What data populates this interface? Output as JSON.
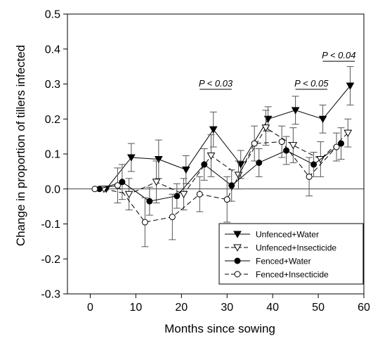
{
  "chart_data": {
    "type": "line",
    "title": "",
    "xlabel": "Months since sowing",
    "ylabel": "Change in proportion of tillers infected",
    "xlim": [
      -5,
      60
    ],
    "ylim": [
      -0.3,
      0.5
    ],
    "xticks": [
      0,
      10,
      20,
      30,
      40,
      50,
      60
    ],
    "yticks": [
      -0.3,
      -0.2,
      -0.1,
      0.0,
      0.1,
      0.2,
      0.3,
      0.4,
      0.5
    ],
    "xtick_labels": [
      "0",
      "10",
      "20",
      "30",
      "40",
      "50",
      "60"
    ],
    "ytick_labels": [
      "-0.3",
      "-0.2",
      "-0.1",
      "0.0",
      "0.1",
      "0.2",
      "0.3",
      "0.4",
      "0.5"
    ],
    "zero_line": true,
    "grid": false,
    "legend_position": "bottom-right",
    "series": [
      {
        "name": "Unfenced+Water",
        "marker": "triangle-down-filled",
        "dash": "solid",
        "color": "#000000",
        "points": [
          {
            "x": 3.5,
            "y": 0.0,
            "err": 0.0
          },
          {
            "x": 9,
            "y": 0.09,
            "err": 0.04
          },
          {
            "x": 15,
            "y": 0.085,
            "err": 0.055
          },
          {
            "x": 21,
            "y": 0.055,
            "err": 0.04
          },
          {
            "x": 27,
            "y": 0.17,
            "err": 0.05
          },
          {
            "x": 33,
            "y": 0.07,
            "err": 0.04
          },
          {
            "x": 39,
            "y": 0.2,
            "err": 0.035
          },
          {
            "x": 45,
            "y": 0.225,
            "err": 0.04
          },
          {
            "x": 51,
            "y": 0.2,
            "err": 0.04
          },
          {
            "x": 57,
            "y": 0.295,
            "err": 0.055
          }
        ]
      },
      {
        "name": "Unfenced+Insecticide",
        "marker": "triangle-down-open",
        "dash": "dashed",
        "color": "#000000",
        "points": [
          {
            "x": 3,
            "y": 0.0,
            "err": 0.0
          },
          {
            "x": 8.5,
            "y": -0.015,
            "err": 0.045
          },
          {
            "x": 14.5,
            "y": 0.02,
            "err": 0.06
          },
          {
            "x": 20.5,
            "y": -0.015,
            "err": 0.045
          },
          {
            "x": 26.5,
            "y": 0.095,
            "err": 0.06
          },
          {
            "x": 32.5,
            "y": 0.04,
            "err": 0.04
          },
          {
            "x": 38.5,
            "y": 0.175,
            "err": 0.05
          },
          {
            "x": 44.5,
            "y": 0.125,
            "err": 0.05
          },
          {
            "x": 50.5,
            "y": 0.085,
            "err": 0.05
          },
          {
            "x": 56.5,
            "y": 0.16,
            "err": 0.04
          }
        ]
      },
      {
        "name": "Fenced+Water",
        "marker": "circle-filled",
        "dash": "solid",
        "color": "#000000",
        "points": [
          {
            "x": 2,
            "y": 0.0,
            "err": 0.0
          },
          {
            "x": 7,
            "y": 0.02,
            "err": 0.05
          },
          {
            "x": 13,
            "y": -0.035,
            "err": 0.04
          },
          {
            "x": 19,
            "y": -0.02,
            "err": 0.035
          },
          {
            "x": 25,
            "y": 0.07,
            "err": 0.045
          },
          {
            "x": 31,
            "y": 0.01,
            "err": 0.045
          },
          {
            "x": 37,
            "y": 0.075,
            "err": 0.04
          },
          {
            "x": 43,
            "y": 0.11,
            "err": 0.04
          },
          {
            "x": 49,
            "y": 0.07,
            "err": 0.035
          },
          {
            "x": 55,
            "y": 0.13,
            "err": 0.045
          }
        ]
      },
      {
        "name": "Fenced+Insecticide",
        "marker": "circle-open",
        "dash": "dashed",
        "color": "#000000",
        "points": [
          {
            "x": 1,
            "y": 0.0,
            "err": 0.0
          },
          {
            "x": 6,
            "y": 0.01,
            "err": 0.05
          },
          {
            "x": 12,
            "y": -0.095,
            "err": 0.07
          },
          {
            "x": 18,
            "y": -0.08,
            "err": 0.065
          },
          {
            "x": 24,
            "y": -0.015,
            "err": 0.05
          },
          {
            "x": 30,
            "y": -0.03,
            "err": 0.065
          },
          {
            "x": 36,
            "y": 0.13,
            "err": 0.05
          },
          {
            "x": 42,
            "y": 0.135,
            "err": 0.045
          },
          {
            "x": 48,
            "y": 0.035,
            "err": 0.055
          },
          {
            "x": 54,
            "y": 0.12,
            "err": 0.04
          }
        ]
      }
    ],
    "annotations": [
      {
        "label": "P < 0.03",
        "x_start": 24,
        "x_end": 31,
        "y": 0.285
      },
      {
        "label": "P < 0.05",
        "x_start": 45,
        "x_end": 52,
        "y": 0.285
      },
      {
        "label": "P < 0.04",
        "x_start": 51,
        "x_end": 58,
        "y": 0.365
      }
    ]
  }
}
